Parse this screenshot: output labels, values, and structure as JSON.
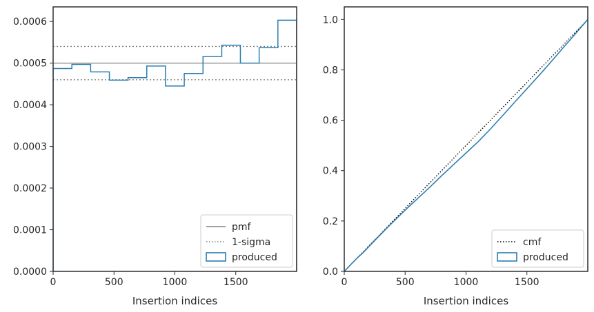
{
  "chart_data": [
    {
      "type": "histogram-step",
      "xlabel": "Insertion indices",
      "ylabel": "",
      "xlim": [
        0,
        2000
      ],
      "ylim": [
        0,
        0.000635
      ],
      "xticks": [
        0,
        500,
        1000,
        1500
      ],
      "yticks": [
        0.0,
        0.0001,
        0.0002,
        0.0003,
        0.0004,
        0.0005,
        0.0006
      ],
      "ytick_labels": [
        "0.0000",
        "0.0001",
        "0.0002",
        "0.0003",
        "0.0004",
        "0.0005",
        "0.0006"
      ],
      "bin_edges": [
        0,
        154,
        308,
        462,
        615,
        769,
        923,
        1077,
        1231,
        1385,
        1538,
        1692,
        1846,
        2000
      ],
      "series": [
        {
          "name": "produced",
          "color": "#2a7fb0",
          "values": [
            0.000487,
            0.000497,
            0.000479,
            0.000459,
            0.000465,
            0.000493,
            0.000445,
            0.000475,
            0.000516,
            0.000543,
            0.0005,
            0.000537,
            0.000603
          ]
        }
      ],
      "reference_lines": [
        {
          "name": "pmf",
          "style": "solid",
          "color": "#808080",
          "y": 0.0005
        },
        {
          "name": "1-sigma",
          "style": "dotted",
          "color": "#808080",
          "y": [
            0.00046,
            0.00054
          ]
        }
      ],
      "legend": [
        "pmf",
        "1-sigma",
        "produced"
      ],
      "legend_position": "lower-right"
    },
    {
      "type": "line",
      "xlabel": "Insertion indices",
      "ylabel": "",
      "xlim": [
        0,
        2000
      ],
      "ylim": [
        0,
        1.05
      ],
      "xticks": [
        0,
        500,
        1000,
        1500
      ],
      "yticks": [
        0.0,
        0.2,
        0.4,
        0.6,
        0.8,
        1.0
      ],
      "ytick_labels": [
        "0.0",
        "0.2",
        "0.4",
        "0.6",
        "0.8",
        "1.0"
      ],
      "series": [
        {
          "name": "cmf",
          "style": "dotted",
          "color": "#000000",
          "x": [
            0,
            2000
          ],
          "y": [
            0.0,
            1.0
          ]
        },
        {
          "name": "produced",
          "style": "solid",
          "color": "#2a7fb0",
          "x": [
            0,
            50,
            100,
            150,
            200,
            300,
            400,
            500,
            600,
            700,
            800,
            900,
            1000,
            1100,
            1200,
            1300,
            1400,
            1500,
            1600,
            1700,
            1800,
            1900,
            2000
          ],
          "y": [
            0.0,
            0.025,
            0.05,
            0.072,
            0.097,
            0.147,
            0.196,
            0.243,
            0.288,
            0.333,
            0.38,
            0.425,
            0.47,
            0.515,
            0.565,
            0.618,
            0.672,
            0.725,
            0.778,
            0.833,
            0.889,
            0.944,
            1.0
          ]
        }
      ],
      "legend": [
        "cmf",
        "produced"
      ],
      "legend_position": "lower-right"
    }
  ]
}
